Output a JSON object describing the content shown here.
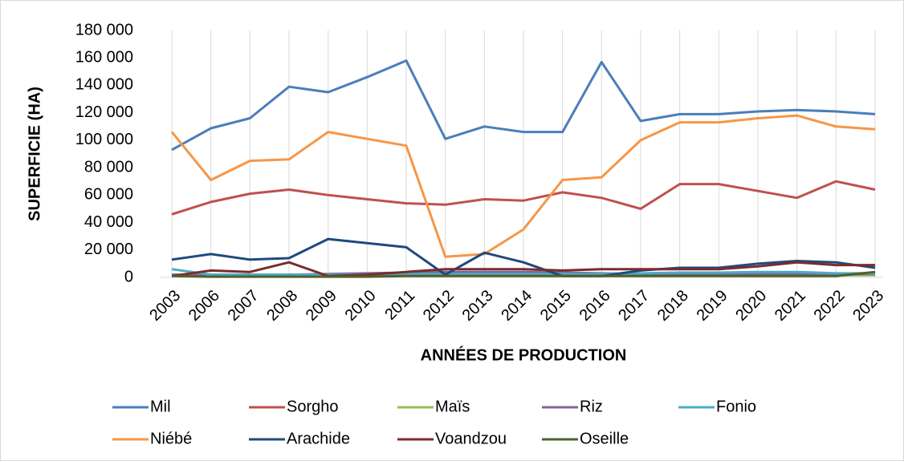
{
  "chart_data": {
    "type": "line",
    "y_label": "SUPERFICIE (HA)",
    "x_label": "ANNÉES DE PRODUCTION",
    "categories": [
      "2003",
      "2006",
      "2007",
      "2008",
      "2009",
      "2010",
      "2011",
      "2012",
      "2013",
      "2014",
      "2015",
      "2016",
      "2017",
      "2018",
      "2019",
      "2020",
      "2021",
      "2022",
      "2023"
    ],
    "ylim": [
      0,
      180000
    ],
    "yticks": [
      0,
      {
        "value": 20000,
        "label": "20 000"
      },
      {
        "value": 40000,
        "label": "40 000"
      },
      {
        "value": 60000,
        "label": "60 000"
      },
      {
        "value": 80000,
        "label": "80 000"
      },
      {
        "value": 100000,
        "label": "100 000"
      },
      {
        "value": 120000,
        "label": "120 000"
      },
      {
        "value": 140000,
        "label": "140 000"
      },
      {
        "value": 160000,
        "label": "160 000"
      },
      {
        "value": 180000,
        "label": "180 000"
      }
    ],
    "grid": "x",
    "legend": "bottom",
    "series": [
      {
        "name": "Mil",
        "color": "#4a7ebb",
        "values": [
          93000,
          108700,
          116000,
          139000,
          135000,
          146000,
          158000,
          101000,
          110000,
          106000,
          106000,
          157000,
          114000,
          119000,
          119000,
          121000,
          122000,
          121000,
          119000
        ]
      },
      {
        "name": "Sorgho",
        "color": "#c0504d",
        "values": [
          46000,
          55000,
          61000,
          64000,
          60000,
          57000,
          54000,
          53000,
          57000,
          56000,
          62000,
          58000,
          50000,
          68000,
          68000,
          63000,
          58000,
          70000,
          64000
        ]
      },
      {
        "name": "Maïs",
        "color": "#9bbb59",
        "values": [
          1000,
          1500,
          1500,
          2000,
          1500,
          1500,
          2000,
          2000,
          2000,
          2000,
          1500,
          1500,
          1500,
          1500,
          1500,
          1500,
          1500,
          1500,
          1500
        ]
      },
      {
        "name": "Riz",
        "color": "#8064a2",
        "values": [
          2000,
          2000,
          2000,
          2000,
          2500,
          3000,
          3500,
          4000,
          4000,
          4000,
          3500,
          3000,
          2500,
          2500,
          2500,
          2500,
          2500,
          2500,
          2500
        ]
      },
      {
        "name": "Fonio",
        "color": "#4bacc6",
        "values": [
          6000,
          2000,
          2000,
          2000,
          2000,
          2000,
          2500,
          2500,
          2500,
          2500,
          2500,
          2500,
          3000,
          3500,
          3500,
          4000,
          4000,
          3000,
          3000
        ]
      },
      {
        "name": "Niébé",
        "color": "#f79646",
        "values": [
          106000,
          71000,
          85000,
          86000,
          106000,
          101000,
          96000,
          15000,
          17000,
          35000,
          71000,
          73000,
          100000,
          113000,
          113000,
          116000,
          118000,
          110000,
          108000
        ]
      },
      {
        "name": "Arachide",
        "color": "#1f497d",
        "values": [
          13000,
          17000,
          13000,
          14000,
          28000,
          25000,
          22000,
          2000,
          18000,
          11000,
          1000,
          1000,
          5000,
          7000,
          7000,
          10000,
          12000,
          11000,
          7000
        ]
      },
      {
        "name": "Voandzou",
        "color": "#7b2c2c",
        "values": [
          1000,
          5000,
          4000,
          11000,
          1000,
          2000,
          4000,
          6000,
          6000,
          6000,
          5000,
          6000,
          6000,
          6000,
          6000,
          8000,
          11000,
          9000,
          9000
        ]
      },
      {
        "name": "Oseille",
        "color": "#4f6228",
        "values": [
          1000,
          500,
          500,
          500,
          500,
          500,
          1000,
          1000,
          1000,
          1000,
          1000,
          1000,
          1000,
          1000,
          1000,
          1000,
          1000,
          1000,
          4000
        ]
      }
    ]
  }
}
